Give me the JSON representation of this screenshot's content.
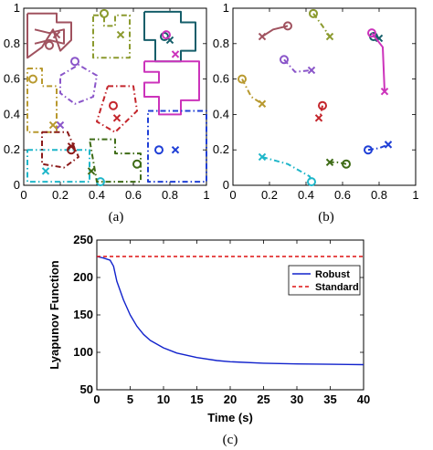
{
  "captions": {
    "a": "(a)",
    "b": "(b)",
    "c": "(c)"
  },
  "colors": {
    "maroon": "#a0525f",
    "olive": "#8b9a2e",
    "teal": "#155e6a",
    "magenta": "#cc33bb",
    "mustard": "#b8992f",
    "purple": "#8a55c9",
    "red": "#c4262c",
    "cyan": "#1fb6c9",
    "darkred": "#8b1a1a",
    "darkgreen": "#3e6b16",
    "blue": "#1f3fd6"
  },
  "chart_data": [
    {
      "id": "a",
      "type": "line",
      "xlim": [
        0,
        1
      ],
      "ylim": [
        0,
        1
      ],
      "xticks": [
        "0",
        "0.2",
        "0.4",
        "0.6",
        "0.8",
        "1"
      ],
      "yticks": [
        "0",
        "0.2",
        "0.4",
        "0.6",
        "0.8",
        "1"
      ],
      "series": [
        {
          "color": "maroon",
          "style": "solid",
          "points": [
            [
              0.02,
              0.97
            ],
            [
              0.18,
              0.97
            ],
            [
              0.18,
              0.92
            ],
            [
              0.26,
              0.92
            ],
            [
              0.26,
              0.82
            ],
            [
              0.2,
              0.76
            ],
            [
              0.16,
              0.88
            ],
            [
              0.1,
              0.78
            ],
            [
              0.02,
              0.72
            ],
            [
              0.02,
              0.97
            ]
          ],
          "start": [
            0.14,
            0.79
          ],
          "end": [
            0.18,
            0.85
          ]
        },
        {
          "color": "maroon",
          "style": "solid",
          "points": [
            [
              0.06,
              0.88
            ],
            [
              0.14,
              0.86
            ],
            [
              0.22,
              0.88
            ],
            [
              0.22,
              0.8
            ],
            [
              0.14,
              0.82
            ],
            [
              0.06,
              0.8
            ]
          ]
        },
        {
          "color": "olive",
          "style": "dashdot",
          "points": [
            [
              0.38,
              0.96
            ],
            [
              0.44,
              0.96
            ],
            [
              0.44,
              0.9
            ],
            [
              0.5,
              0.9
            ],
            [
              0.5,
              0.96
            ],
            [
              0.58,
              0.96
            ],
            [
              0.58,
              0.72
            ],
            [
              0.38,
              0.72
            ],
            [
              0.38,
              0.96
            ]
          ],
          "start": [
            0.44,
            0.97
          ],
          "end": [
            0.53,
            0.85
          ]
        },
        {
          "color": "teal",
          "style": "solid",
          "points": [
            [
              0.66,
              0.98
            ],
            [
              0.86,
              0.98
            ],
            [
              0.86,
              0.92
            ],
            [
              0.94,
              0.92
            ],
            [
              0.94,
              0.76
            ],
            [
              0.86,
              0.76
            ],
            [
              0.86,
              0.7
            ],
            [
              0.72,
              0.7
            ],
            [
              0.72,
              0.82
            ],
            [
              0.66,
              0.82
            ],
            [
              0.66,
              0.98
            ]
          ],
          "start": [
            0.77,
            0.84
          ],
          "end": [
            0.8,
            0.82
          ]
        },
        {
          "color": "magenta",
          "style": "solid",
          "points": [
            [
              0.66,
              0.7
            ],
            [
              0.96,
              0.7
            ],
            [
              0.96,
              0.48
            ],
            [
              0.86,
              0.48
            ],
            [
              0.86,
              0.4
            ],
            [
              0.74,
              0.4
            ],
            [
              0.74,
              0.5
            ],
            [
              0.66,
              0.5
            ],
            [
              0.66,
              0.58
            ],
            [
              0.74,
              0.58
            ],
            [
              0.74,
              0.64
            ],
            [
              0.66,
              0.64
            ],
            [
              0.66,
              0.7
            ]
          ],
          "start": [
            0.78,
            0.85
          ],
          "end": [
            0.83,
            0.74
          ]
        },
        {
          "color": "mustard",
          "style": "dashdot",
          "points": [
            [
              0.02,
              0.66
            ],
            [
              0.1,
              0.66
            ],
            [
              0.1,
              0.56
            ],
            [
              0.18,
              0.56
            ],
            [
              0.18,
              0.3
            ],
            [
              0.02,
              0.3
            ],
            [
              0.02,
              0.66
            ]
          ],
          "start": [
            0.05,
            0.6
          ],
          "end": [
            0.16,
            0.34
          ]
        },
        {
          "color": "purple",
          "style": "dashdot",
          "points": [
            [
              0.2,
              0.62
            ],
            [
              0.3,
              0.68
            ],
            [
              0.4,
              0.62
            ],
            [
              0.38,
              0.5
            ],
            [
              0.28,
              0.46
            ],
            [
              0.2,
              0.52
            ],
            [
              0.2,
              0.62
            ]
          ],
          "start": [
            0.28,
            0.7
          ],
          "end": [
            0.2,
            0.34
          ]
        },
        {
          "color": "red",
          "style": "dashdot",
          "points": [
            [
              0.46,
              0.56
            ],
            [
              0.6,
              0.56
            ],
            [
              0.62,
              0.42
            ],
            [
              0.5,
              0.3
            ],
            [
              0.4,
              0.36
            ],
            [
              0.46,
              0.56
            ]
          ],
          "start": [
            0.49,
            0.45
          ],
          "end": [
            0.51,
            0.38
          ]
        },
        {
          "color": "cyan",
          "style": "dashdot",
          "points": [
            [
              0.02,
              0.2
            ],
            [
              0.36,
              0.2
            ],
            [
              0.36,
              0.02
            ],
            [
              0.02,
              0.02
            ],
            [
              0.02,
              0.2
            ]
          ],
          "start": [
            0.42,
            0.02
          ],
          "end": [
            0.12,
            0.08
          ]
        },
        {
          "color": "darkred",
          "style": "dashdot",
          "points": [
            [
              0.1,
              0.3
            ],
            [
              0.24,
              0.3
            ],
            [
              0.3,
              0.16
            ],
            [
              0.22,
              0.1
            ],
            [
              0.1,
              0.12
            ],
            [
              0.1,
              0.3
            ]
          ],
          "start": [
            0.26,
            0.2
          ],
          "end": [
            0.26,
            0.22
          ]
        },
        {
          "color": "darkgreen",
          "style": "dashdot",
          "points": [
            [
              0.36,
              0.26
            ],
            [
              0.5,
              0.26
            ],
            [
              0.5,
              0.18
            ],
            [
              0.64,
              0.18
            ],
            [
              0.64,
              0.02
            ],
            [
              0.4,
              0.02
            ],
            [
              0.36,
              0.26
            ]
          ],
          "start": [
            0.62,
            0.12
          ],
          "end": [
            0.37,
            0.08
          ]
        },
        {
          "color": "blue",
          "style": "dashdot",
          "points": [
            [
              0.68,
              0.42
            ],
            [
              1.0,
              0.42
            ],
            [
              1.0,
              0.02
            ],
            [
              0.68,
              0.02
            ],
            [
              0.68,
              0.42
            ]
          ],
          "start": [
            0.74,
            0.2
          ],
          "end": [
            0.83,
            0.2
          ]
        }
      ]
    },
    {
      "id": "b",
      "type": "line",
      "xlim": [
        0,
        1
      ],
      "ylim": [
        0,
        1
      ],
      "xticks": [
        "0",
        "0.2",
        "0.4",
        "0.6",
        "0.8",
        "1"
      ],
      "yticks": [
        "0",
        "0.2",
        "0.4",
        "0.6",
        "0.8",
        "1"
      ],
      "series": [
        {
          "color": "maroon",
          "style": "solid",
          "points": [
            [
              0.3,
              0.9
            ],
            [
              0.22,
              0.88
            ],
            [
              0.16,
              0.84
            ]
          ],
          "start": [
            0.3,
            0.9
          ],
          "end": [
            0.16,
            0.84
          ]
        },
        {
          "color": "olive",
          "style": "dashdot",
          "points": [
            [
              0.44,
              0.97
            ],
            [
              0.49,
              0.9
            ],
            [
              0.53,
              0.84
            ]
          ],
          "start": [
            0.44,
            0.97
          ],
          "end": [
            0.53,
            0.84
          ]
        },
        {
          "color": "teal",
          "style": "solid",
          "points": [
            [
              0.77,
              0.84
            ],
            [
              0.8,
              0.83
            ]
          ],
          "start": [
            0.77,
            0.84
          ],
          "end": [
            0.8,
            0.83
          ]
        },
        {
          "color": "magenta",
          "style": "solid",
          "points": [
            [
              0.76,
              0.86
            ],
            [
              0.82,
              0.78
            ],
            [
              0.83,
              0.53
            ]
          ],
          "start": [
            0.76,
            0.86
          ],
          "end": [
            0.83,
            0.53
          ]
        },
        {
          "color": "mustard",
          "style": "dashdot",
          "points": [
            [
              0.05,
              0.6
            ],
            [
              0.1,
              0.5
            ],
            [
              0.16,
              0.46
            ]
          ],
          "start": [
            0.05,
            0.6
          ],
          "end": [
            0.16,
            0.46
          ]
        },
        {
          "color": "purple",
          "style": "dashdot",
          "points": [
            [
              0.28,
              0.71
            ],
            [
              0.34,
              0.64
            ],
            [
              0.43,
              0.65
            ]
          ],
          "start": [
            0.28,
            0.71
          ],
          "end": [
            0.43,
            0.65
          ]
        },
        {
          "color": "red",
          "style": "dashdot",
          "points": [
            [
              0.49,
              0.45
            ],
            [
              0.48,
              0.4
            ],
            [
              0.47,
              0.38
            ]
          ],
          "start": [
            0.49,
            0.45
          ],
          "end": [
            0.47,
            0.38
          ]
        },
        {
          "color": "cyan",
          "style": "dashdot",
          "points": [
            [
              0.16,
              0.16
            ],
            [
              0.3,
              0.12
            ],
            [
              0.42,
              0.05
            ],
            [
              0.43,
              0.02
            ]
          ],
          "start": [
            0.43,
            0.02
          ],
          "end": [
            0.16,
            0.16
          ]
        },
        {
          "color": "darkgreen",
          "style": "dashdot",
          "points": [
            [
              0.62,
              0.12
            ],
            [
              0.57,
              0.13
            ],
            [
              0.53,
              0.13
            ]
          ],
          "start": [
            0.62,
            0.12
          ],
          "end": [
            0.53,
            0.13
          ]
        },
        {
          "color": "blue",
          "style": "dashdot",
          "points": [
            [
              0.74,
              0.2
            ],
            [
              0.8,
              0.21
            ],
            [
              0.85,
              0.23
            ]
          ],
          "start": [
            0.74,
            0.2
          ],
          "end": [
            0.85,
            0.23
          ]
        }
      ]
    },
    {
      "id": "c",
      "type": "line",
      "xlabel": "Time (s)",
      "ylabel": "Lyapunov Function",
      "xlim": [
        0,
        40
      ],
      "ylim": [
        50,
        250
      ],
      "xticks": [
        "0",
        "5",
        "10",
        "15",
        "20",
        "25",
        "30",
        "35",
        "40"
      ],
      "yticks": [
        "50",
        "100",
        "150",
        "200",
        "250"
      ],
      "legend_position": "top-right",
      "series": [
        {
          "name": "Robust",
          "color": "#1122cc",
          "style": "solid",
          "x": [
            0,
            1,
            2,
            2.5,
            3,
            4,
            5,
            6,
            7,
            8,
            10,
            12,
            15,
            18,
            20,
            25,
            30,
            35,
            40
          ],
          "y": [
            228,
            226,
            223,
            215,
            195,
            170,
            150,
            135,
            124,
            116,
            106,
            99,
            93,
            89,
            87.5,
            85.5,
            84.5,
            84,
            83.5
          ]
        },
        {
          "name": "Standard",
          "color": "#dd1111",
          "style": "dashed",
          "x": [
            0,
            40
          ],
          "y": [
            228,
            228
          ]
        }
      ]
    }
  ]
}
